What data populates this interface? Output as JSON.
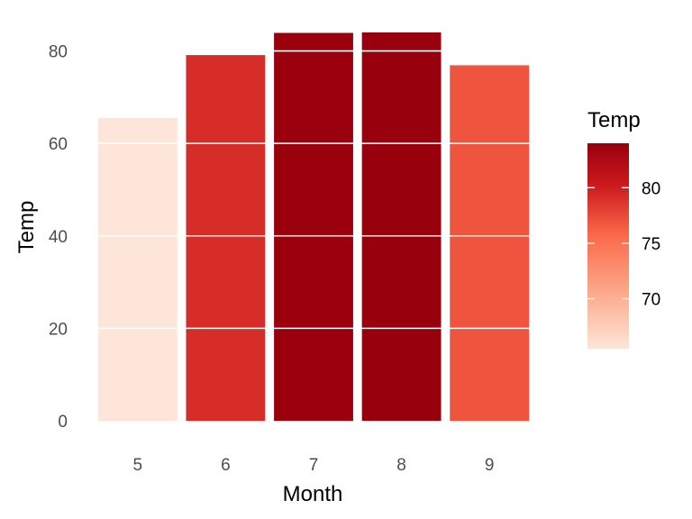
{
  "chart_data": {
    "type": "bar",
    "categories": [
      "5",
      "6",
      "7",
      "8",
      "9"
    ],
    "values": [
      65.5,
      79.1,
      83.9,
      84.0,
      76.9
    ],
    "xlabel": "Month",
    "ylabel": "Temp",
    "ylim": [
      0,
      84
    ],
    "yticks": [
      0,
      20,
      40,
      60,
      80
    ],
    "grid": "horizontal, white, drawn over bars",
    "legend": {
      "title": "Temp",
      "position": "right",
      "type": "continuous colorbar",
      "range": [
        65.5,
        84.0
      ],
      "ticks": [
        70,
        75,
        80
      ],
      "colors": {
        "low": "#FEE5D9",
        "mid": "#FB6A4A",
        "high": "#99000D"
      }
    }
  }
}
